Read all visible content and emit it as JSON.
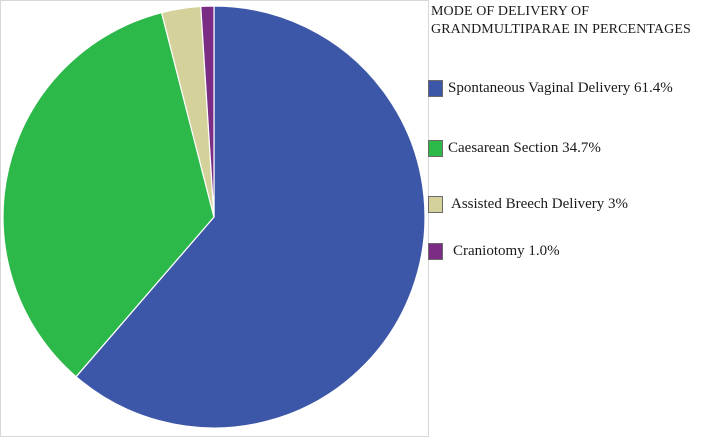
{
  "chart_data": {
    "type": "pie",
    "title": "MODE OF DELIVERY OF\nGRANDMULTIPARAE IN PERCENTAGES",
    "legend_position": "right",
    "start_angle_deg": 0,
    "direction": "clockwise",
    "slices": [
      {
        "label": "Spontaneous Vaginal Delivery 61.4%",
        "value": 61.4,
        "color": "#3d57a8"
      },
      {
        "label": "Caesarean Section 34.7%",
        "value": 34.7,
        "color": "#2db84a"
      },
      {
        "label": "Assisted Breech Delivery 3%",
        "value": 3.0,
        "color": "#d5d19a"
      },
      {
        "label": "Craniotomy 1.0%",
        "value": 1.0,
        "color": "#7b2d86"
      }
    ]
  },
  "colors": {
    "slice_border": "#ffffff",
    "frame_border": "#d8d8d8"
  }
}
